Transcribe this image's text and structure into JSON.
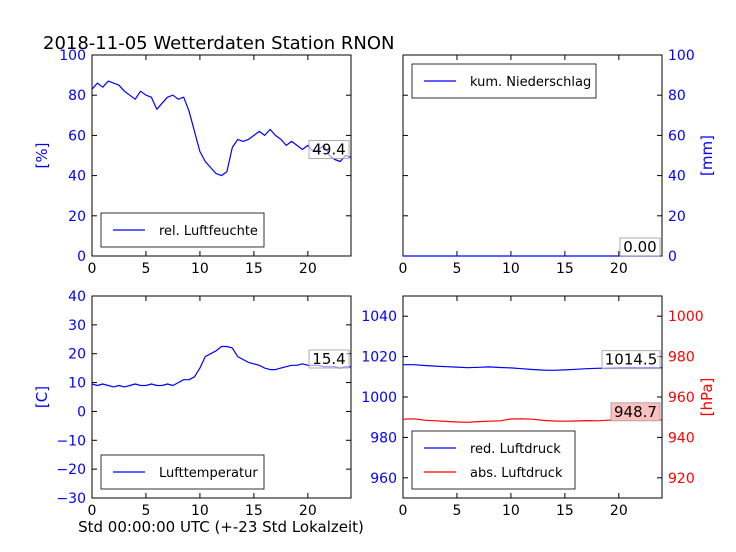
{
  "title": "2018-11-05 Wetterdaten Station RNON",
  "xlabel": "Std 00:00:00 UTC (+-23 Std Lokalzeit)",
  "colors": {
    "blue": "#0000ff",
    "red": "#ff0000",
    "black": "#000000",
    "pressure_box": "#ffbfbf"
  },
  "chart_data": [
    {
      "type": "line",
      "panel": "top-left",
      "ylabel": "[%]",
      "ylabel_color": "#0000ff",
      "xlim": [
        0,
        24
      ],
      "ylim": [
        0,
        100
      ],
      "xticks": [
        0,
        5,
        10,
        15,
        20
      ],
      "yticks": [
        0,
        20,
        40,
        60,
        80,
        100
      ],
      "legend_placement": "lower-left",
      "series": [
        {
          "name": "rel. Luftfeuchte",
          "color": "#0000ff",
          "x": [
            0,
            0.5,
            1,
            1.5,
            2,
            2.5,
            3,
            3.5,
            4,
            4.5,
            5,
            5.5,
            6,
            6.5,
            7,
            7.5,
            8,
            8.5,
            9,
            9.5,
            10,
            10.5,
            11,
            11.5,
            12,
            12.5,
            13,
            13.5,
            14,
            14.5,
            15,
            15.5,
            16,
            16.5,
            17,
            17.5,
            18,
            18.5,
            19,
            19.5,
            20,
            20.5,
            21,
            21.5,
            22,
            22.5,
            23,
            23.5,
            24
          ],
          "y": [
            83,
            86,
            84,
            87,
            86,
            85,
            82,
            80,
            78,
            82,
            80,
            79,
            73,
            76,
            79,
            80,
            78,
            79,
            72,
            62,
            52,
            47,
            44,
            41,
            40,
            42,
            54,
            58,
            57,
            58,
            60,
            62,
            60,
            63,
            60,
            58,
            55,
            57,
            55,
            53,
            55,
            52,
            53,
            55,
            50,
            48,
            47,
            50,
            49
          ]
        }
      ],
      "last_value_label": "49.4"
    },
    {
      "type": "line",
      "panel": "top-right",
      "ylabel": "[mm]",
      "ylabel_color": "#0000ff",
      "xlim": [
        0,
        24
      ],
      "ylim": [
        0,
        100
      ],
      "xticks": [
        0,
        5,
        10,
        15,
        20
      ],
      "yticks": [
        0,
        20,
        40,
        60,
        80,
        100
      ],
      "legend_placement": "upper-left",
      "series": [
        {
          "name": "kum. Niederschlag",
          "color": "#0000ff",
          "x": [
            0,
            24
          ],
          "y": [
            0,
            0
          ]
        }
      ],
      "last_value_label": "0.00"
    },
    {
      "type": "line",
      "panel": "bottom-left",
      "ylabel": "[C]",
      "ylabel_color": "#0000ff",
      "xlim": [
        0,
        24
      ],
      "ylim": [
        -30,
        40
      ],
      "xticks": [
        0,
        5,
        10,
        15,
        20
      ],
      "yticks": [
        -30,
        -20,
        -10,
        0,
        10,
        20,
        30,
        40
      ],
      "legend_placement": "lower-left",
      "series": [
        {
          "name": "Lufttemperatur",
          "color": "#0000ff",
          "x": [
            0,
            0.5,
            1,
            1.5,
            2,
            2.5,
            3,
            3.5,
            4,
            4.5,
            5,
            5.5,
            6,
            6.5,
            7,
            7.5,
            8,
            8.5,
            9,
            9.5,
            10,
            10.5,
            11,
            11.5,
            12,
            12.5,
            13,
            13.5,
            14,
            14.5,
            15,
            15.5,
            16,
            16.5,
            17,
            17.5,
            18,
            18.5,
            19,
            19.5,
            20,
            20.5,
            21,
            21.5,
            22,
            22.5,
            23,
            23.5,
            24
          ],
          "y": [
            9.5,
            9,
            9.5,
            9,
            8.5,
            9,
            8.5,
            9,
            9.5,
            9,
            9,
            9.5,
            9,
            9,
            9.5,
            9,
            10,
            11,
            11,
            12,
            15,
            19,
            20,
            21,
            22.5,
            22.5,
            22,
            19,
            18,
            17,
            16.5,
            16,
            15,
            14.5,
            14.5,
            15,
            15.5,
            16,
            16,
            16.5,
            16,
            16,
            16,
            15.5,
            15.5,
            15.5,
            15,
            15.5,
            15.4
          ]
        }
      ],
      "last_value_label": "15.4"
    },
    {
      "type": "line",
      "panel": "bottom-right",
      "ylabel": "[hPa]",
      "ylabel_color": "#ff0000",
      "xlim": [
        0,
        24
      ],
      "ylim_left": [
        950,
        1050
      ],
      "ylim_right": [
        910,
        1010
      ],
      "xticks": [
        0,
        5,
        10,
        15,
        20
      ],
      "yticks_left": [
        960,
        980,
        1000,
        1020,
        1040
      ],
      "yticks_right": [
        920,
        940,
        960,
        980,
        1000
      ],
      "legend_placement": "lower-left",
      "series": [
        {
          "name": "red. Luftdruck",
          "axis": "left",
          "color": "#0000ff",
          "x": [
            0,
            1,
            2,
            3,
            4,
            5,
            6,
            7,
            8,
            9,
            10,
            11,
            12,
            13,
            14,
            15,
            16,
            17,
            18,
            19,
            20,
            21,
            22,
            23,
            24
          ],
          "y": [
            1016,
            1016,
            1015.6,
            1015.3,
            1015,
            1014.8,
            1014.5,
            1014.7,
            1014.9,
            1014.6,
            1014.4,
            1014,
            1013.6,
            1013.3,
            1013.2,
            1013.4,
            1013.7,
            1014,
            1014.2,
            1014.3,
            1014.5,
            1014.6,
            1014.5,
            1014.6,
            1014.5
          ]
        },
        {
          "name": "abs. Luftdruck",
          "axis": "right",
          "color": "#ff0000",
          "x": [
            0,
            1,
            2,
            3,
            4,
            5,
            6,
            7,
            8,
            9,
            10,
            11,
            12,
            13,
            14,
            15,
            16,
            17,
            18,
            19,
            20,
            21,
            22,
            23,
            24
          ],
          "y": [
            949,
            949.2,
            948.5,
            948.2,
            947.9,
            947.6,
            947.5,
            947.8,
            948,
            948.2,
            949.1,
            949.2,
            949,
            948.4,
            948.1,
            948,
            948.1,
            948.3,
            948.2,
            948.5,
            948.6,
            948.7,
            948.9,
            948.7,
            948.7
          ]
        }
      ],
      "last_value_labels": [
        "1014.5",
        "948.7"
      ]
    }
  ]
}
